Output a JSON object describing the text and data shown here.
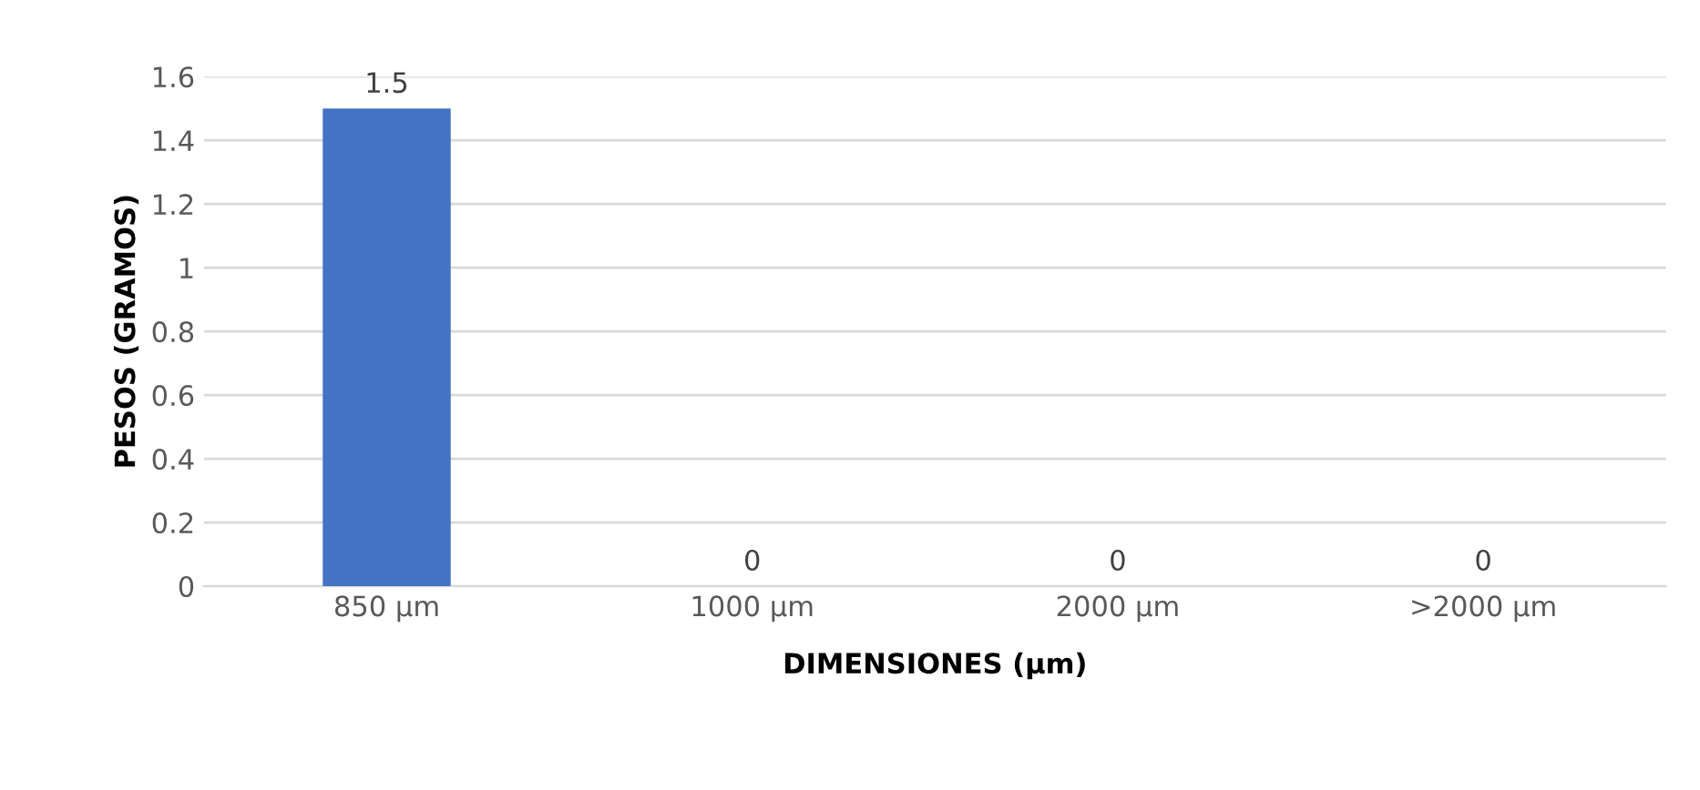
{
  "chart_data": {
    "type": "bar",
    "xlabel": "DIMENSIONES (µm)",
    "ylabel": "PESOS (GRAMOS)",
    "categories": [
      "850 µm",
      "1000 µm",
      "2000 µm",
      ">2000 µm"
    ],
    "values": [
      1.5,
      0,
      0,
      0
    ],
    "color": "#4472c4",
    "ylim": [
      0,
      1.6
    ],
    "yticks": [
      0,
      0.2,
      0.4,
      0.6,
      0.8,
      1,
      1.2,
      1.4,
      1.6
    ],
    "grid": "y",
    "data_labels": true
  }
}
